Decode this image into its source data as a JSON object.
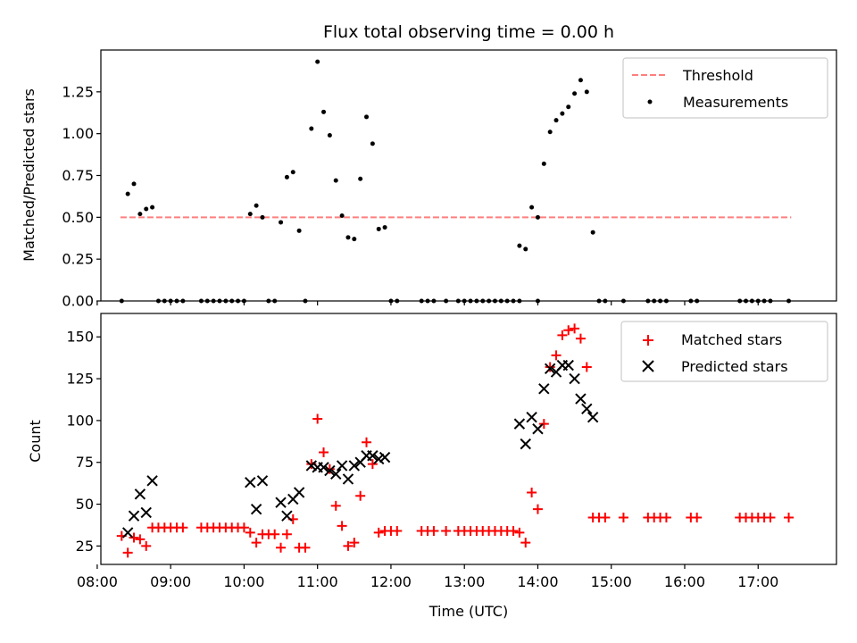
{
  "chart_data": [
    {
      "type": "scatter",
      "title": "Flux total observing time = 0.00 h",
      "xlabel": "",
      "ylabel": "Matched/Predicted stars",
      "xlim": [
        "08:03",
        "18:04"
      ],
      "ylim": [
        0,
        1.5
      ],
      "yticks": [
        0.0,
        0.25,
        0.5,
        0.75,
        1.0,
        1.25
      ],
      "yticklabels": [
        "0.00",
        "0.25",
        "0.50",
        "0.75",
        "1.00",
        "1.25"
      ],
      "xticks": [
        "08:00",
        "09:00",
        "10:00",
        "11:00",
        "12:00",
        "13:00",
        "14:00",
        "15:00",
        "16:00",
        "17:00"
      ],
      "xtick_labels_shown": false,
      "grid": false,
      "legend": {
        "position": "top-right",
        "entries": [
          "Threshold",
          "Measurements"
        ]
      },
      "series": [
        {
          "name": "Threshold",
          "style": "dashed-line",
          "color": "#ff7f7f",
          "x": [
            "08:19",
            "17:27"
          ],
          "y": [
            0.5,
            0.5
          ]
        },
        {
          "name": "Measurements",
          "style": "dot",
          "color": "#000000",
          "points": [
            [
              "08:20",
              0.0
            ],
            [
              "08:25",
              0.64
            ],
            [
              "08:30",
              0.7
            ],
            [
              "08:35",
              0.52
            ],
            [
              "08:40",
              0.55
            ],
            [
              "08:45",
              0.56
            ],
            [
              "08:50",
              0.0
            ],
            [
              "08:55",
              0.0
            ],
            [
              "09:00",
              0.0
            ],
            [
              "09:05",
              0.0
            ],
            [
              "09:10",
              0.0
            ],
            [
              "09:25",
              0.0
            ],
            [
              "09:30",
              0.0
            ],
            [
              "09:35",
              0.0
            ],
            [
              "09:40",
              0.0
            ],
            [
              "09:45",
              0.0
            ],
            [
              "09:50",
              0.0
            ],
            [
              "09:55",
              0.0
            ],
            [
              "10:00",
              0.0
            ],
            [
              "10:05",
              0.52
            ],
            [
              "10:10",
              0.57
            ],
            [
              "10:15",
              0.5
            ],
            [
              "10:20",
              0.0
            ],
            [
              "10:25",
              0.0
            ],
            [
              "10:30",
              0.47
            ],
            [
              "10:35",
              0.74
            ],
            [
              "10:40",
              0.77
            ],
            [
              "10:45",
              0.42
            ],
            [
              "10:50",
              0.0
            ],
            [
              "10:55",
              1.03
            ],
            [
              "11:00",
              1.43
            ],
            [
              "11:05",
              1.13
            ],
            [
              "11:10",
              0.99
            ],
            [
              "11:15",
              0.72
            ],
            [
              "11:20",
              0.51
            ],
            [
              "11:25",
              0.38
            ],
            [
              "11:30",
              0.37
            ],
            [
              "11:35",
              0.73
            ],
            [
              "11:40",
              1.1
            ],
            [
              "11:45",
              0.94
            ],
            [
              "11:50",
              0.43
            ],
            [
              "11:55",
              0.44
            ],
            [
              "12:00",
              0.0
            ],
            [
              "12:05",
              0.0
            ],
            [
              "12:25",
              0.0
            ],
            [
              "12:30",
              0.0
            ],
            [
              "12:35",
              0.0
            ],
            [
              "12:45",
              0.0
            ],
            [
              "12:55",
              0.0
            ],
            [
              "13:00",
              0.0
            ],
            [
              "13:05",
              0.0
            ],
            [
              "13:10",
              0.0
            ],
            [
              "13:15",
              0.0
            ],
            [
              "13:20",
              0.0
            ],
            [
              "13:25",
              0.0
            ],
            [
              "13:30",
              0.0
            ],
            [
              "13:35",
              0.0
            ],
            [
              "13:40",
              0.0
            ],
            [
              "13:45",
              0.0
            ],
            [
              "13:45",
              0.33
            ],
            [
              "13:50",
              0.31
            ],
            [
              "13:55",
              0.56
            ],
            [
              "14:00",
              0.0
            ],
            [
              "14:00",
              0.5
            ],
            [
              "14:05",
              0.82
            ],
            [
              "14:10",
              1.01
            ],
            [
              "14:15",
              1.08
            ],
            [
              "14:20",
              1.12
            ],
            [
              "14:25",
              1.16
            ],
            [
              "14:30",
              1.24
            ],
            [
              "14:35",
              1.32
            ],
            [
              "14:40",
              1.25
            ],
            [
              "14:45",
              0.41
            ],
            [
              "14:50",
              0.0
            ],
            [
              "14:55",
              0.0
            ],
            [
              "15:10",
              0.0
            ],
            [
              "15:30",
              0.0
            ],
            [
              "15:35",
              0.0
            ],
            [
              "15:40",
              0.0
            ],
            [
              "15:45",
              0.0
            ],
            [
              "16:05",
              0.0
            ],
            [
              "16:10",
              0.0
            ],
            [
              "16:45",
              0.0
            ],
            [
              "16:50",
              0.0
            ],
            [
              "16:55",
              0.0
            ],
            [
              "17:00",
              0.0
            ],
            [
              "17:05",
              0.0
            ],
            [
              "17:10",
              0.0
            ],
            [
              "17:25",
              0.0
            ]
          ]
        }
      ]
    },
    {
      "type": "scatter",
      "title": "",
      "xlabel": "Time (UTC)",
      "ylabel": "Count",
      "xlim": [
        "08:03",
        "18:04"
      ],
      "ylim": [
        14,
        164
      ],
      "yticks": [
        25,
        50,
        75,
        100,
        125,
        150
      ],
      "yticklabels": [
        "25",
        "50",
        "75",
        "100",
        "125",
        "150"
      ],
      "xticks": [
        "08:00",
        "09:00",
        "10:00",
        "11:00",
        "12:00",
        "13:00",
        "14:00",
        "15:00",
        "16:00",
        "17:00"
      ],
      "xticklabels": [
        "08:00",
        "09:00",
        "10:00",
        "11:00",
        "12:00",
        "13:00",
        "14:00",
        "15:00",
        "16:00",
        "17:00"
      ],
      "grid": false,
      "legend": {
        "position": "top-right",
        "entries": [
          "Matched stars",
          "Predicted stars"
        ]
      },
      "series": [
        {
          "name": "Matched stars",
          "marker": "plus",
          "color": "#ff0000",
          "points": [
            [
              "08:20",
              31
            ],
            [
              "08:25",
              21
            ],
            [
              "08:30",
              30
            ],
            [
              "08:35",
              29
            ],
            [
              "08:40",
              25
            ],
            [
              "08:45",
              36
            ],
            [
              "08:50",
              36
            ],
            [
              "08:55",
              36
            ],
            [
              "09:00",
              36
            ],
            [
              "09:05",
              36
            ],
            [
              "09:10",
              36
            ],
            [
              "09:25",
              36
            ],
            [
              "09:30",
              36
            ],
            [
              "09:35",
              36
            ],
            [
              "09:40",
              36
            ],
            [
              "09:45",
              36
            ],
            [
              "09:50",
              36
            ],
            [
              "09:55",
              36
            ],
            [
              "10:00",
              36
            ],
            [
              "10:05",
              33
            ],
            [
              "10:10",
              27
            ],
            [
              "10:15",
              32
            ],
            [
              "10:20",
              32
            ],
            [
              "10:25",
              32
            ],
            [
              "10:30",
              24
            ],
            [
              "10:35",
              32
            ],
            [
              "10:40",
              41
            ],
            [
              "10:45",
              24
            ],
            [
              "10:50",
              24
            ],
            [
              "10:55",
              74
            ],
            [
              "11:00",
              101
            ],
            [
              "11:05",
              81
            ],
            [
              "11:10",
              71
            ],
            [
              "11:15",
              49
            ],
            [
              "11:20",
              37
            ],
            [
              "11:25",
              25
            ],
            [
              "11:30",
              27
            ],
            [
              "11:35",
              55
            ],
            [
              "11:40",
              87
            ],
            [
              "11:45",
              74
            ],
            [
              "11:50",
              33
            ],
            [
              "11:55",
              34
            ],
            [
              "12:00",
              34
            ],
            [
              "12:05",
              34
            ],
            [
              "12:25",
              34
            ],
            [
              "12:30",
              34
            ],
            [
              "12:35",
              34
            ],
            [
              "12:45",
              34
            ],
            [
              "12:55",
              34
            ],
            [
              "13:00",
              34
            ],
            [
              "13:05",
              34
            ],
            [
              "13:10",
              34
            ],
            [
              "13:15",
              34
            ],
            [
              "13:20",
              34
            ],
            [
              "13:25",
              34
            ],
            [
              "13:30",
              34
            ],
            [
              "13:35",
              34
            ],
            [
              "13:40",
              34
            ],
            [
              "13:45",
              33
            ],
            [
              "13:50",
              27
            ],
            [
              "13:55",
              57
            ],
            [
              "14:00",
              47
            ],
            [
              "14:05",
              98
            ],
            [
              "14:10",
              132
            ],
            [
              "14:15",
              139
            ],
            [
              "14:20",
              151
            ],
            [
              "14:25",
              154
            ],
            [
              "14:30",
              155
            ],
            [
              "14:35",
              149
            ],
            [
              "14:40",
              132
            ],
            [
              "14:45",
              42
            ],
            [
              "14:50",
              42
            ],
            [
              "14:55",
              42
            ],
            [
              "15:10",
              42
            ],
            [
              "15:30",
              42
            ],
            [
              "15:35",
              42
            ],
            [
              "15:40",
              42
            ],
            [
              "15:45",
              42
            ],
            [
              "16:05",
              42
            ],
            [
              "16:10",
              42
            ],
            [
              "16:45",
              42
            ],
            [
              "16:50",
              42
            ],
            [
              "16:55",
              42
            ],
            [
              "17:00",
              42
            ],
            [
              "17:05",
              42
            ],
            [
              "17:10",
              42
            ],
            [
              "17:25",
              42
            ]
          ]
        },
        {
          "name": "Predicted stars",
          "marker": "x",
          "color": "#000000",
          "points": [
            [
              "08:25",
              33
            ],
            [
              "08:30",
              43
            ],
            [
              "08:35",
              56
            ],
            [
              "08:40",
              45
            ],
            [
              "08:45",
              64
            ],
            [
              "10:05",
              63
            ],
            [
              "10:10",
              47
            ],
            [
              "10:15",
              64
            ],
            [
              "10:30",
              51
            ],
            [
              "10:35",
              43
            ],
            [
              "10:40",
              53
            ],
            [
              "10:45",
              57
            ],
            [
              "10:55",
              73
            ],
            [
              "11:00",
              72
            ],
            [
              "11:05",
              72
            ],
            [
              "11:10",
              70
            ],
            [
              "11:15",
              68
            ],
            [
              "11:20",
              73
            ],
            [
              "11:25",
              65
            ],
            [
              "11:30",
              73
            ],
            [
              "11:35",
              75
            ],
            [
              "11:40",
              79
            ],
            [
              "11:45",
              79
            ],
            [
              "11:50",
              77
            ],
            [
              "11:55",
              78
            ],
            [
              "13:45",
              98
            ],
            [
              "13:50",
              86
            ],
            [
              "13:55",
              102
            ],
            [
              "14:00",
              95
            ],
            [
              "14:05",
              119
            ],
            [
              "14:10",
              131
            ],
            [
              "14:15",
              129
            ],
            [
              "14:20",
              133
            ],
            [
              "14:25",
              133
            ],
            [
              "14:30",
              125
            ],
            [
              "14:35",
              113
            ],
            [
              "14:40",
              107
            ],
            [
              "14:45",
              102
            ]
          ]
        }
      ]
    }
  ]
}
